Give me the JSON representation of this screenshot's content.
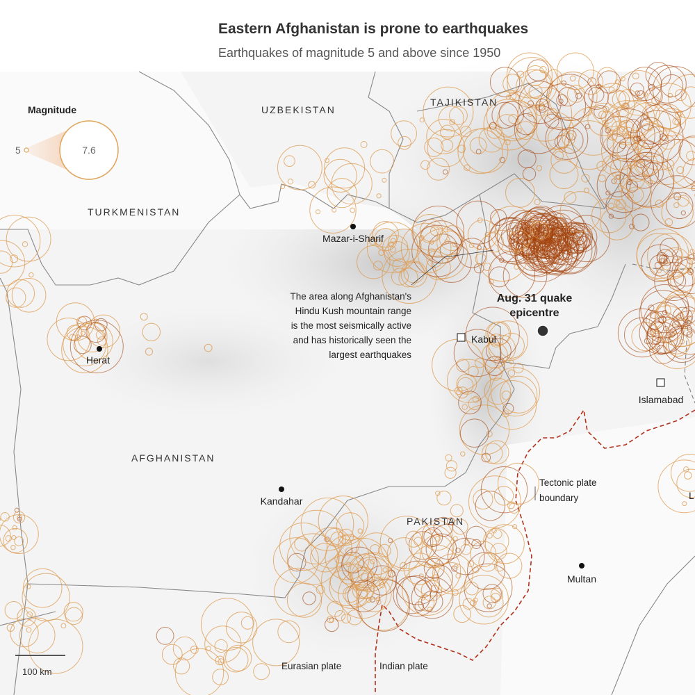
{
  "header": {
    "title": "Eastern Afghanistan is prone to earthquakes",
    "subtitle": "Earthquakes of magnitude 5 and above since 1950"
  },
  "legend": {
    "title": "Magnitude",
    "min": 5,
    "max": 7.6
  },
  "countries": [
    "UZBEKISTAN",
    "TAJIKISTAN",
    "TURKMENISTAN",
    "AFGHANISTAN",
    "PAKISTAN"
  ],
  "cities": [
    "Mazar-i-Sharif",
    "Herat",
    "Kabul",
    "Islamabad",
    "Kandahar",
    "Multan",
    "L"
  ],
  "annotations": {
    "hindu_kush": [
      "The area along Afghanistan's",
      "Hindu Kush mountain range",
      "is the most seismically active",
      "and has historically seen the",
      "largest earthquakes"
    ],
    "epicentre": [
      "Aug. 31 quake",
      "epicentre"
    ],
    "plate_boundary": [
      "Tectonic plate",
      "boundary"
    ],
    "eurasian_plate": "Eurasian plate",
    "indian_plate": "Indian plate"
  },
  "scale_bar": "100 km"
}
